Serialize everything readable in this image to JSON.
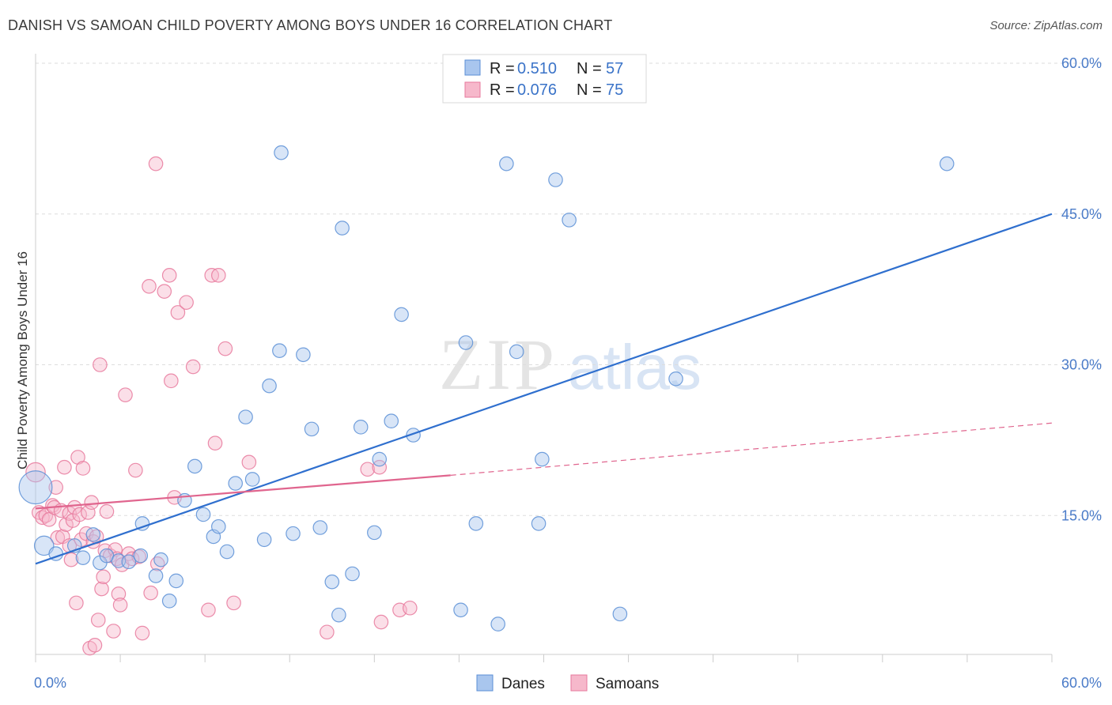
{
  "header": {
    "title": "DANISH VS SAMOAN CHILD POVERTY AMONG BOYS UNDER 16 CORRELATION CHART",
    "source": "Source: ZipAtlas.com"
  },
  "watermark": {
    "zip": "ZIP",
    "atlas": "atlas"
  },
  "colors": {
    "danes_fill": "#a9c6ee",
    "danes_stroke": "#5b8fd6",
    "danes_line": "#2f6fce",
    "samoans_fill": "#f6b8cb",
    "samoans_stroke": "#e7799c",
    "samoans_line": "#e0658e",
    "tick": "#4a7bc8",
    "grid": "#dddddd"
  },
  "chart_data": {
    "type": "scatter",
    "title": "DANISH VS SAMOAN CHILD POVERTY AMONG BOYS UNDER 16 CORRELATION CHART",
    "xlabel": "",
    "ylabel": "Child Poverty Among Boys Under 16",
    "xlim": [
      0,
      60
    ],
    "ylim": [
      0,
      60
    ],
    "x_tick_labels": [
      {
        "value": 0,
        "label": "0.0%"
      },
      {
        "value": 60,
        "label": "60.0%"
      }
    ],
    "y_tick_labels": [
      {
        "value": 15,
        "label": "15.0%"
      },
      {
        "value": 30,
        "label": "30.0%"
      },
      {
        "value": 45,
        "label": "45.0%"
      },
      {
        "value": 60,
        "label": "60.0%"
      }
    ],
    "grid": "horizontal dashed",
    "legend_top": [
      {
        "series": "Danes",
        "r_label": "R = ",
        "r_value": "0.510",
        "n_label": "N = ",
        "n_value": "57"
      },
      {
        "series": "Samoans",
        "r_label": "R = ",
        "r_value": "0.076",
        "n_label": "N = ",
        "n_value": "75"
      }
    ],
    "legend_bottom": [
      "Danes",
      "Samoans"
    ],
    "series": [
      {
        "name": "Danes",
        "color": "#a9c6ee",
        "trend": {
          "x0": 0,
          "y0": 10.2,
          "x1": 60,
          "y1": 45.0,
          "style": "solid"
        },
        "points": [
          [
            0.0,
            17.8,
            24
          ],
          [
            0.5,
            12.0,
            14
          ],
          [
            1.2,
            11.2,
            10
          ],
          [
            2.3,
            12.0,
            10
          ],
          [
            2.8,
            10.8,
            10
          ],
          [
            3.4,
            13.1,
            10
          ],
          [
            3.8,
            10.3,
            10
          ],
          [
            4.2,
            11.0,
            10
          ],
          [
            4.9,
            10.5,
            10
          ],
          [
            5.5,
            10.4,
            10
          ],
          [
            6.2,
            11.0,
            10
          ],
          [
            6.3,
            14.2,
            10
          ],
          [
            7.1,
            9.0,
            10
          ],
          [
            7.4,
            10.6,
            10
          ],
          [
            7.9,
            6.5,
            10
          ],
          [
            8.3,
            8.5,
            10
          ],
          [
            8.8,
            16.5,
            10
          ],
          [
            9.4,
            19.9,
            10
          ],
          [
            9.9,
            15.1,
            10
          ],
          [
            10.5,
            12.9,
            10
          ],
          [
            10.8,
            13.9,
            10
          ],
          [
            11.3,
            11.4,
            10
          ],
          [
            11.8,
            18.2,
            10
          ],
          [
            12.4,
            24.8,
            10
          ],
          [
            12.8,
            18.6,
            10
          ],
          [
            13.5,
            12.6,
            10
          ],
          [
            13.8,
            27.9,
            10
          ],
          [
            14.4,
            31.4,
            10
          ],
          [
            14.5,
            51.1,
            10
          ],
          [
            15.2,
            13.2,
            10
          ],
          [
            15.8,
            31.0,
            10
          ],
          [
            16.3,
            23.6,
            10
          ],
          [
            16.8,
            13.8,
            10
          ],
          [
            17.5,
            8.4,
            10
          ],
          [
            17.9,
            5.1,
            10
          ],
          [
            18.1,
            43.6,
            10
          ],
          [
            18.7,
            9.2,
            10
          ],
          [
            19.2,
            23.8,
            10
          ],
          [
            20.0,
            13.3,
            10
          ],
          [
            20.3,
            20.6,
            10
          ],
          [
            21.0,
            24.4,
            10
          ],
          [
            21.6,
            35.0,
            10
          ],
          [
            22.3,
            23.0,
            10
          ],
          [
            25.1,
            5.6,
            10
          ],
          [
            25.4,
            32.2,
            10
          ],
          [
            26.0,
            14.2,
            10
          ],
          [
            27.3,
            4.2,
            10
          ],
          [
            27.8,
            50.0,
            10
          ],
          [
            28.4,
            31.3,
            10
          ],
          [
            29.7,
            14.2,
            10
          ],
          [
            29.9,
            20.6,
            10
          ],
          [
            30.7,
            48.4,
            10
          ],
          [
            31.5,
            44.4,
            10
          ],
          [
            34.5,
            5.2,
            10
          ],
          [
            37.8,
            28.6,
            10
          ],
          [
            53.8,
            50.0,
            10
          ]
        ]
      },
      {
        "name": "Samoans",
        "color": "#f6b8cb",
        "trend": {
          "x0": 0,
          "y0": 15.7,
          "x1": 24.5,
          "y1": 19.0,
          "style": "solid",
          "extends_dashed_to": {
            "x": 60,
            "y": 24.2
          }
        },
        "points": [
          [
            0.0,
            19.3,
            14
          ],
          [
            0.2,
            15.3,
            10
          ],
          [
            0.4,
            14.8,
            10
          ],
          [
            0.6,
            15.0,
            10
          ],
          [
            0.8,
            14.6,
            10
          ],
          [
            1.0,
            16.0,
            10
          ],
          [
            1.1,
            15.8,
            10
          ],
          [
            1.2,
            17.8,
            10
          ],
          [
            1.3,
            12.8,
            10
          ],
          [
            1.5,
            15.5,
            10
          ],
          [
            1.6,
            12.9,
            10
          ],
          [
            1.7,
            19.8,
            10
          ],
          [
            1.8,
            14.1,
            10
          ],
          [
            2.0,
            12.0,
            10
          ],
          [
            2.0,
            15.2,
            10
          ],
          [
            2.1,
            10.6,
            10
          ],
          [
            2.2,
            14.5,
            10
          ],
          [
            2.3,
            15.8,
            10
          ],
          [
            2.4,
            6.3,
            10
          ],
          [
            2.5,
            20.8,
            10
          ],
          [
            2.6,
            15.1,
            10
          ],
          [
            2.7,
            12.6,
            10
          ],
          [
            2.8,
            19.7,
            10
          ],
          [
            3.0,
            13.2,
            10
          ],
          [
            3.1,
            15.3,
            10
          ],
          [
            3.2,
            1.8,
            10
          ],
          [
            3.3,
            16.3,
            10
          ],
          [
            3.4,
            12.4,
            10
          ],
          [
            3.5,
            2.1,
            10
          ],
          [
            3.6,
            12.9,
            10
          ],
          [
            3.7,
            4.6,
            10
          ],
          [
            3.8,
            30.0,
            10
          ],
          [
            3.9,
            7.7,
            10
          ],
          [
            4.0,
            8.9,
            10
          ],
          [
            4.1,
            11.5,
            10
          ],
          [
            4.2,
            15.4,
            10
          ],
          [
            4.4,
            11.0,
            10
          ],
          [
            4.6,
            3.5,
            10
          ],
          [
            4.7,
            11.6,
            10
          ],
          [
            4.8,
            10.7,
            10
          ],
          [
            4.9,
            7.2,
            10
          ],
          [
            5.0,
            6.1,
            10
          ],
          [
            5.1,
            10.1,
            10
          ],
          [
            5.3,
            27.0,
            10
          ],
          [
            5.5,
            11.2,
            10
          ],
          [
            5.7,
            10.7,
            10
          ],
          [
            5.9,
            19.5,
            10
          ],
          [
            6.1,
            10.9,
            10
          ],
          [
            6.3,
            3.3,
            10
          ],
          [
            6.7,
            37.8,
            10
          ],
          [
            6.8,
            7.3,
            10
          ],
          [
            7.1,
            50.0,
            10
          ],
          [
            7.2,
            10.2,
            10
          ],
          [
            7.6,
            37.3,
            10
          ],
          [
            7.9,
            38.9,
            10
          ],
          [
            8.0,
            28.4,
            10
          ],
          [
            8.2,
            16.8,
            10
          ],
          [
            8.4,
            35.2,
            10
          ],
          [
            8.9,
            36.2,
            10
          ],
          [
            9.3,
            29.8,
            10
          ],
          [
            10.2,
            5.6,
            10
          ],
          [
            10.4,
            38.9,
            10
          ],
          [
            10.6,
            22.2,
            10
          ],
          [
            10.8,
            38.9,
            10
          ],
          [
            11.2,
            31.6,
            10
          ],
          [
            11.7,
            6.3,
            10
          ],
          [
            12.6,
            20.3,
            10
          ],
          [
            17.2,
            3.4,
            10
          ],
          [
            19.6,
            19.6,
            10
          ],
          [
            20.3,
            19.8,
            10
          ],
          [
            20.4,
            4.4,
            10
          ],
          [
            21.5,
            5.6,
            10
          ],
          [
            22.1,
            5.8,
            10
          ]
        ]
      }
    ]
  }
}
